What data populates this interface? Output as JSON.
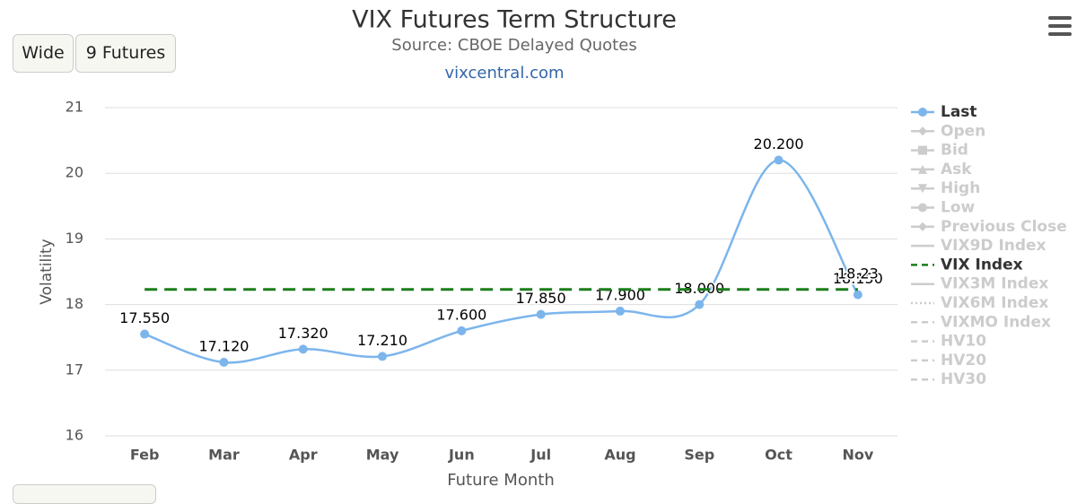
{
  "chart_data": {
    "type": "line",
    "title": "VIX Futures Term Structure",
    "subtitle": "Source: CBOE Delayed Quotes",
    "credit": "vixcentral.com",
    "buttons": [
      "Wide",
      "9 Futures"
    ],
    "x_label": "Future Month",
    "y_label": "Volatility",
    "categories": [
      "Feb",
      "Mar",
      "Apr",
      "May",
      "Jun",
      "Jul",
      "Aug",
      "Sep",
      "Oct",
      "Nov"
    ],
    "ylim": [
      16,
      21
    ],
    "yticks": [
      16,
      17,
      18,
      19,
      20,
      21
    ],
    "grid": true,
    "legend_position": "right",
    "series": [
      {
        "name": "Last",
        "color": "#7cb5ec",
        "marker": "circle",
        "smooth": true,
        "visible": true,
        "values": [
          17.55,
          17.12,
          17.32,
          17.21,
          17.6,
          17.85,
          17.9,
          18.0,
          20.2,
          18.15
        ],
        "value_labels": [
          "17.550",
          "17.120",
          "17.320",
          "17.210",
          "17.600",
          "17.850",
          "17.900",
          "18.000",
          "20.200",
          "18.150"
        ]
      },
      {
        "name": "Open",
        "color": "#cccccc",
        "marker": "diamond",
        "visible": false
      },
      {
        "name": "Bid",
        "color": "#cccccc",
        "marker": "square",
        "visible": false
      },
      {
        "name": "Ask",
        "color": "#cccccc",
        "marker": "triangle",
        "visible": false
      },
      {
        "name": "High",
        "color": "#cccccc",
        "marker": "triangle-down",
        "visible": false
      },
      {
        "name": "Low",
        "color": "#cccccc",
        "marker": "circle",
        "visible": false
      },
      {
        "name": "Previous Close",
        "color": "#cccccc",
        "marker": "diamond",
        "visible": false
      },
      {
        "name": "VIX9D Index",
        "color": "#cccccc",
        "visible": false
      },
      {
        "name": "VIX Index",
        "color": "#1a7d1a",
        "dash": "dash",
        "visible": true,
        "values": [
          18.23,
          18.23,
          18.23,
          18.23,
          18.23,
          18.23,
          18.23,
          18.23,
          18.23,
          18.23
        ],
        "value_labels": [
          null,
          null,
          null,
          null,
          null,
          null,
          null,
          null,
          null,
          "18.23"
        ]
      },
      {
        "name": "VIX3M Index",
        "color": "#cccccc",
        "visible": false
      },
      {
        "name": "VIX6M Index",
        "color": "#cccccc",
        "dash": "dot",
        "visible": false
      },
      {
        "name": "VIXMO Index",
        "color": "#cccccc",
        "dash": "dash",
        "visible": false
      },
      {
        "name": "HV10",
        "color": "#cccccc",
        "dash": "dash",
        "visible": false
      },
      {
        "name": "HV20",
        "color": "#cccccc",
        "dash": "dash",
        "visible": false
      },
      {
        "name": "HV30",
        "color": "#cccccc",
        "dash": "dash",
        "visible": false
      }
    ]
  }
}
